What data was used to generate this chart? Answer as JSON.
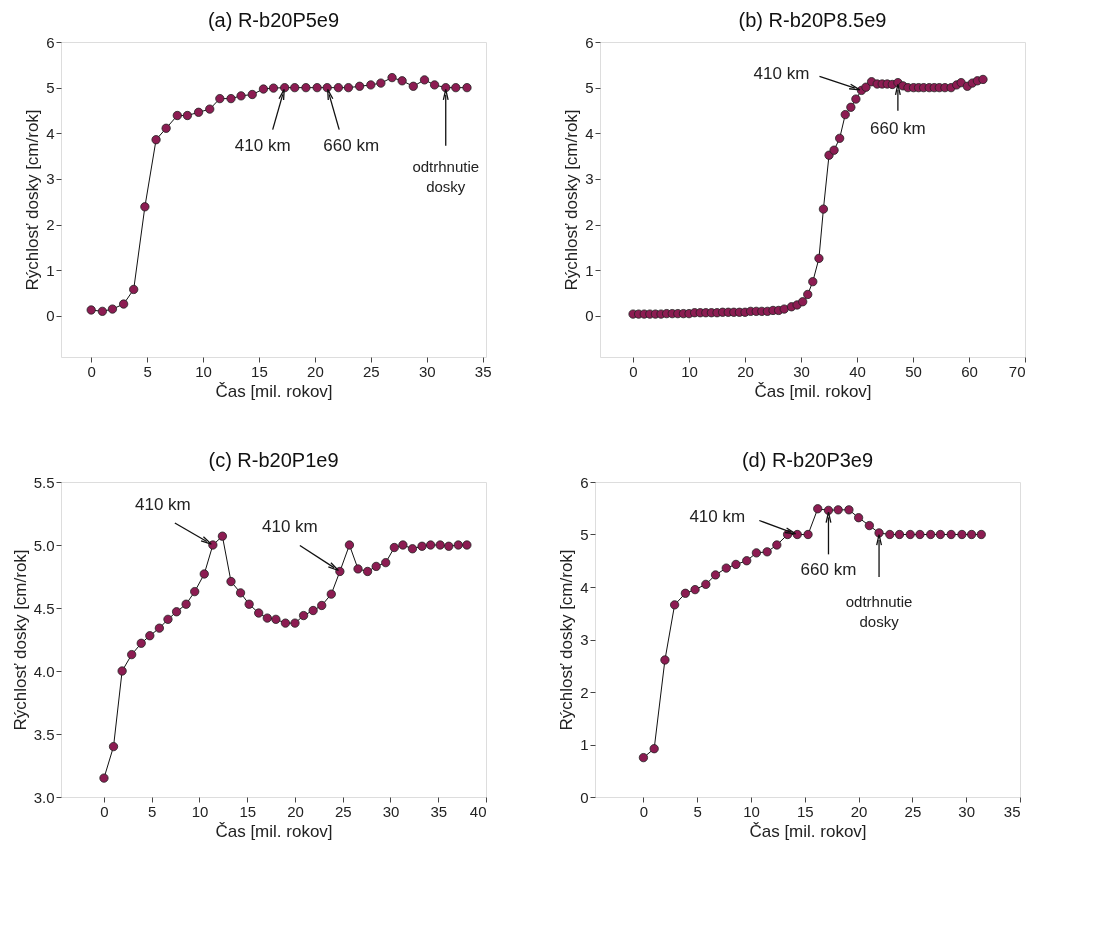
{
  "chart_data": [
    {
      "type": "line",
      "title": "(a)   R-b20P5e9",
      "xlabel": "Čas [mil. rokov]",
      "ylabel": "Rýchlosť dosky [cm/rok]",
      "marker": "circle",
      "line_style": "solid",
      "grid": false,
      "xlim": [
        -2.7,
        35.3
      ],
      "xticks": [
        0,
        5,
        10,
        15,
        20,
        25,
        30,
        35
      ],
      "ylim": [
        -0.9,
        6
      ],
      "yticks": [
        0,
        1,
        2,
        3,
        4,
        5,
        6
      ],
      "x": [
        0,
        1.0,
        1.9,
        2.9,
        3.8,
        4.8,
        5.8,
        6.7,
        7.7,
        8.6,
        9.6,
        10.6,
        11.5,
        12.5,
        13.4,
        14.4,
        15.4,
        16.3,
        17.3,
        18.2,
        19.2,
        20.2,
        21.1,
        22.1,
        23.0,
        24.0,
        25.0,
        25.9,
        26.9,
        27.8,
        28.8,
        29.8,
        30.7,
        31.7,
        32.6,
        33.6
      ],
      "series": [
        {
          "color": "#8c1c52",
          "values": [
            0.13,
            0.1,
            0.15,
            0.26,
            0.58,
            2.39,
            3.86,
            4.11,
            4.39,
            4.39,
            4.46,
            4.53,
            4.76,
            4.76,
            4.82,
            4.85,
            4.97,
            4.99,
            5.0,
            5.0,
            5.0,
            5.0,
            5.0,
            5.0,
            5.0,
            5.03,
            5.06,
            5.1,
            5.22,
            5.15,
            5.03,
            5.17,
            5.06,
            5.0,
            5.0,
            5.0
          ]
        }
      ],
      "annotations": [
        {
          "text": "410 km",
          "x": 17.3,
          "y": 5.0
        },
        {
          "text": "660 km",
          "x": 21.1,
          "y": 5.0
        },
        {
          "text": "odtrhnutie\ndosky",
          "x": 31.7,
          "y": 5.0
        }
      ]
    },
    {
      "type": "line",
      "title": "(b)   R-b20P8.5e9",
      "xlabel": "Čas [mil. rokov]",
      "ylabel": "Rýchlosť dosky [cm/rok]",
      "marker": "circle",
      "line_style": "solid",
      "grid": false,
      "xlim": [
        -5.9,
        70
      ],
      "xticks": [
        0,
        10,
        20,
        30,
        40,
        50,
        60,
        70
      ],
      "ylim": [
        -0.9,
        6
      ],
      "yticks": [
        0,
        1,
        2,
        3,
        4,
        5,
        6
      ],
      "x": [
        0,
        1,
        2,
        3,
        4,
        5,
        6,
        7,
        8,
        9,
        10,
        11,
        12,
        13,
        14,
        15,
        16,
        17,
        18,
        19,
        20,
        21,
        22,
        23,
        24,
        25,
        26,
        27,
        28.3,
        29.3,
        30.3,
        31.2,
        32.1,
        33.2,
        34.0,
        35.0,
        35.9,
        36.9,
        37.9,
        38.9,
        39.8,
        40.8,
        41.6,
        42.6,
        43.6,
        44.5,
        45.4,
        46.3,
        47.3,
        48.2,
        49.1,
        50.1,
        51.0,
        51.9,
        52.9,
        53.8,
        54.7,
        55.7,
        56.8,
        57.8,
        58.6,
        59.7,
        60.6,
        61.5,
        62.5
      ],
      "series": [
        {
          "color": "#8c1c52",
          "values": [
            0.04,
            0.04,
            0.04,
            0.04,
            0.04,
            0.04,
            0.05,
            0.05,
            0.05,
            0.05,
            0.05,
            0.07,
            0.07,
            0.07,
            0.07,
            0.07,
            0.08,
            0.08,
            0.08,
            0.08,
            0.08,
            0.1,
            0.1,
            0.1,
            0.1,
            0.12,
            0.12,
            0.15,
            0.2,
            0.24,
            0.31,
            0.47,
            0.75,
            1.26,
            2.34,
            3.52,
            3.63,
            3.89,
            4.41,
            4.57,
            4.75,
            4.94,
            5.01,
            5.13,
            5.08,
            5.08,
            5.08,
            5.07,
            5.11,
            5.04,
            5.0,
            5.0,
            5.0,
            5.0,
            5.0,
            5.0,
            5.0,
            5.0,
            5.0,
            5.06,
            5.11,
            5.03,
            5.1,
            5.15,
            5.18
          ]
        }
      ],
      "annotations": [
        {
          "text": "410 km",
          "x": 40.8,
          "y": 4.94
        },
        {
          "text": "660 km",
          "x": 47.3,
          "y": 5.11
        }
      ]
    },
    {
      "type": "line",
      "title": "(c)   R-b20P1e9",
      "xlabel": "Čas [mil. rokov]",
      "ylabel": "Rýchlosť dosky [cm/rok]",
      "marker": "circle",
      "line_style": "solid",
      "grid": false,
      "xlim": [
        -4.5,
        40
      ],
      "xticks": [
        0,
        5,
        10,
        15,
        20,
        25,
        30,
        35,
        40
      ],
      "ylim": [
        3.0,
        5.5
      ],
      "yticks": [
        {
          "value": 3,
          "label": "3.0"
        },
        3.5,
        {
          "value": 4,
          "label": "4.0"
        },
        4.5,
        {
          "value": 5,
          "label": "5.0"
        },
        5.5
      ],
      "x": [
        0.0,
        1.0,
        1.9,
        2.9,
        3.9,
        4.8,
        5.8,
        6.7,
        7.6,
        8.6,
        9.5,
        10.5,
        11.4,
        12.4,
        13.3,
        14.3,
        15.2,
        16.2,
        17.1,
        18.0,
        19.0,
        20.0,
        20.9,
        21.9,
        22.8,
        23.8,
        24.7,
        25.7,
        26.6,
        27.6,
        28.5,
        29.5,
        30.4,
        31.3,
        32.3,
        33.3,
        34.2,
        35.2,
        36.1,
        37.1,
        38.0
      ],
      "series": [
        {
          "color": "#8c1c52",
          "values": [
            3.15,
            3.4,
            4.0,
            4.13,
            4.22,
            4.28,
            4.34,
            4.41,
            4.47,
            4.53,
            4.63,
            4.77,
            5.0,
            5.07,
            4.71,
            4.62,
            4.53,
            4.46,
            4.42,
            4.41,
            4.38,
            4.38,
            4.44,
            4.48,
            4.52,
            4.61,
            4.79,
            5.0,
            4.81,
            4.79,
            4.83,
            4.86,
            4.98,
            5.0,
            4.97,
            4.99,
            5.0,
            5.0,
            4.99,
            5.0,
            5.0
          ]
        }
      ],
      "annotations": [
        {
          "text": "410 km",
          "x": 11.4,
          "y": 5.0
        },
        {
          "text": "410 km",
          "x": 24.7,
          "y": 4.79
        }
      ]
    },
    {
      "type": "line",
      "title": "(d)   R-b20P3e9",
      "xlabel": "Čas [mil. rokov]",
      "ylabel": "Rýchlosť dosky [cm/rok]",
      "marker": "circle",
      "line_style": "solid",
      "grid": false,
      "xlim": [
        -4.5,
        35
      ],
      "xticks": [
        0,
        5,
        10,
        15,
        20,
        25,
        30,
        35
      ],
      "ylim": [
        0,
        6
      ],
      "yticks": [
        0,
        1,
        2,
        3,
        4,
        5,
        6
      ],
      "x": [
        0.0,
        1.0,
        2.0,
        2.9,
        3.9,
        4.8,
        5.8,
        6.7,
        7.7,
        8.6,
        9.6,
        10.5,
        11.5,
        12.4,
        13.4,
        14.3,
        15.3,
        16.2,
        17.2,
        18.1,
        19.1,
        20.0,
        21.0,
        21.9,
        22.9,
        23.8,
        24.8,
        25.7,
        26.7,
        27.6,
        28.6,
        29.6,
        30.5,
        31.4
      ],
      "series": [
        {
          "color": "#8c1c52",
          "values": [
            0.75,
            0.92,
            2.61,
            3.66,
            3.88,
            3.95,
            4.05,
            4.23,
            4.36,
            4.43,
            4.5,
            4.65,
            4.67,
            4.8,
            5.0,
            5.0,
            5.0,
            5.49,
            5.46,
            5.47,
            5.47,
            5.32,
            5.17,
            5.03,
            5.0,
            5.0,
            5.0,
            5.0,
            5.0,
            5.0,
            5.0,
            5.0,
            5.0,
            5.0
          ]
        }
      ],
      "annotations": [
        {
          "text": "410 km",
          "x": 14.3,
          "y": 5.0
        },
        {
          "text": "660 km",
          "x": 17.2,
          "y": 5.46
        },
        {
          "text": "odtrhnutie\ndosky",
          "x": 21.9,
          "y": 5.03
        }
      ]
    }
  ]
}
